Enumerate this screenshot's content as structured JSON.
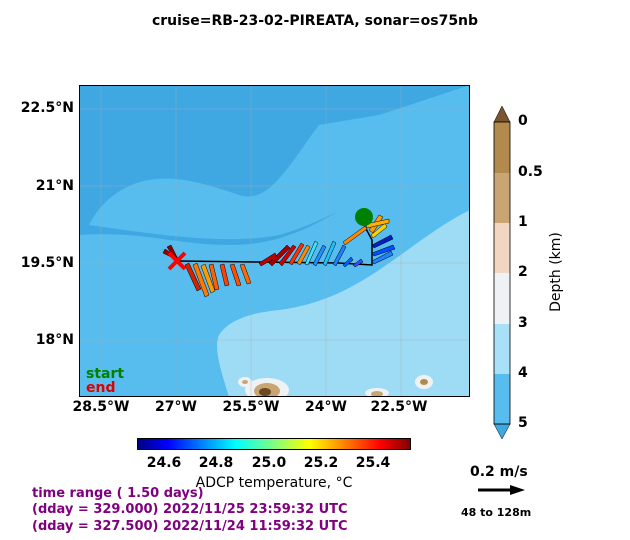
{
  "title": "cruise=RB-23-02-PIREATA,   sonar=os75nb",
  "map": {
    "lat_ticks": [
      "22.5°N",
      "21°N",
      "19.5°N",
      "18°N"
    ],
    "lon_ticks": [
      "28.5°W",
      "27°W",
      "25.5°W",
      "24°W",
      "22.5°W"
    ],
    "legend_start": "start",
    "legend_end": "end",
    "colors": {
      "deep": "#3fa8e3",
      "mid": "#56bdee",
      "shallow": "#9edcf6",
      "land": "#b08850"
    }
  },
  "depth_colorbar": {
    "label": "Depth (km)",
    "ticks": [
      "0",
      "0.5",
      "1",
      "2",
      "3",
      "4",
      "5"
    ],
    "colors": [
      "#b38a4e",
      "#c9a574",
      "#f1d6c2",
      "#eef2f5",
      "#a8e0f7",
      "#56bdee"
    ]
  },
  "temp_colorbar": {
    "label": "ADCP temperature, °C",
    "ticks": [
      "24.6",
      "24.8",
      "25.0",
      "25.2",
      "25.4"
    ],
    "range": [
      24.5,
      25.55
    ]
  },
  "info": {
    "line1": "time range ( 1.50 days)",
    "line2": "(dday = 329.000) 2022/11/25 23:59:32 UTC",
    "line3": "(dday = 327.500) 2022/11/24 11:59:32 UTC"
  },
  "scale": {
    "label": "0.2 m/s",
    "depth_range": "48 to 128m"
  }
}
